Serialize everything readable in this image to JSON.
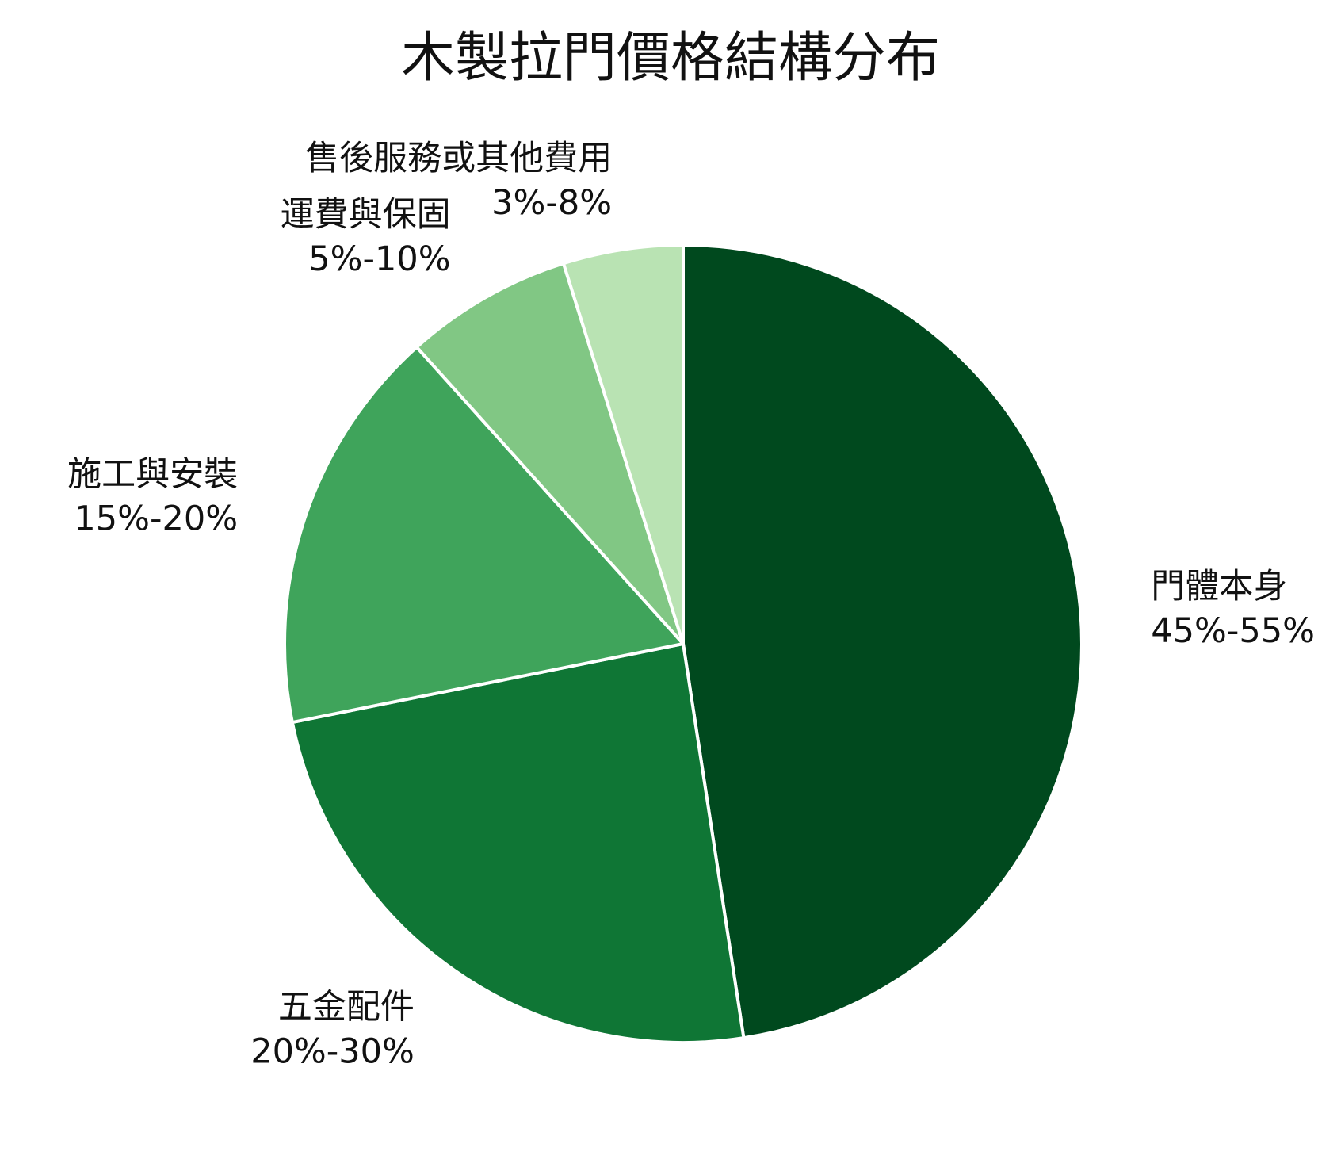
{
  "chart_data": {
    "type": "pie",
    "title": "木製拉門價格結構分布",
    "start_angle_deg": 0,
    "direction": "clockwise",
    "colors": {
      "edge": "#ffffff",
      "text": "#111111"
    },
    "slices": [
      {
        "label": "門體本身",
        "range_label": "45%-55%",
        "value": 49,
        "color": "#00491E"
      },
      {
        "label": "五金配件",
        "range_label": "20%-30%",
        "value": 25,
        "color": "#0F7635"
      },
      {
        "label": "施工與安裝",
        "range_label": "15%-20%",
        "value": 17,
        "color": "#3FA45B"
      },
      {
        "label": "運費與保固",
        "range_label": "5%-10%",
        "value": 7,
        "color": "#81C784"
      },
      {
        "label": "售後服務或其他費用",
        "range_label": "3%-8%",
        "value": 5,
        "color": "#B9E3B3"
      }
    ]
  }
}
